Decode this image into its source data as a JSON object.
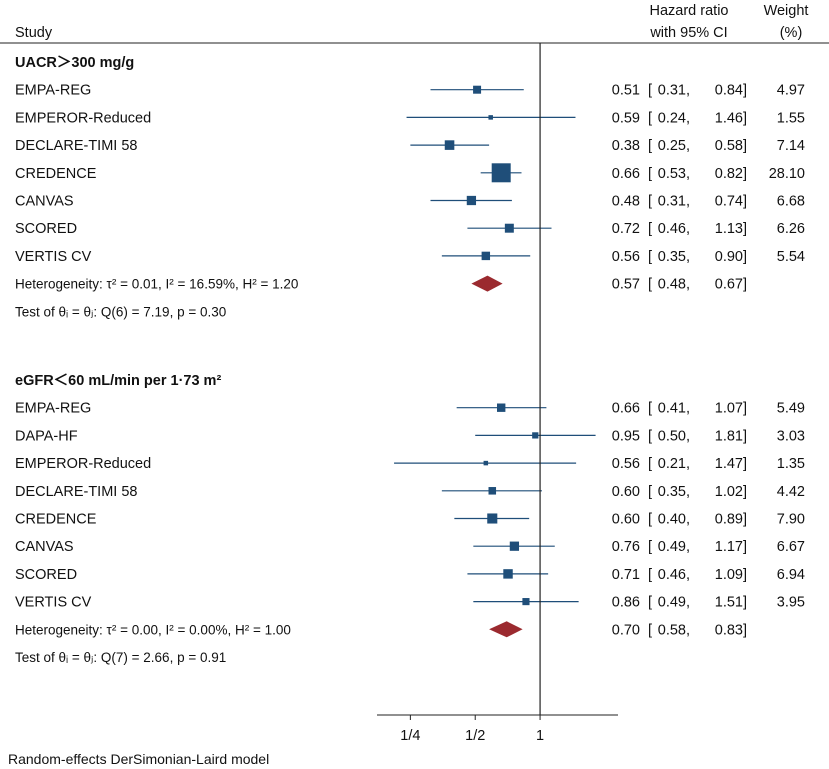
{
  "chart_data": {
    "type": "forest",
    "header": {
      "study": "Study",
      "hr_line1": "Hazard ratio",
      "hr_line2": "with 95% CI",
      "weight_line1": "Weight",
      "weight_line2": "(%)"
    },
    "x_axis": {
      "scale": "log",
      "ticks": [
        0.25,
        0.5,
        1
      ],
      "tick_labels": [
        "1/4",
        "1/2",
        "1"
      ],
      "range": [
        0.175,
        2.3
      ],
      "reference_line": 1
    },
    "groups": [
      {
        "title": "UACR＞300 mg/g",
        "studies": [
          {
            "name": "EMPA-REG",
            "hr": 0.51,
            "lo": 0.31,
            "hi": 0.84,
            "hr_text": "0.51",
            "lo_text": "0.31",
            "hi_text": "0.84",
            "weight": "4.97",
            "w": 4.97
          },
          {
            "name": "EMPEROR-Reduced",
            "hr": 0.59,
            "lo": 0.24,
            "hi": 1.46,
            "hr_text": "0.59",
            "lo_text": "0.24",
            "hi_text": "1.46",
            "weight": "1.55",
            "w": 1.55
          },
          {
            "name": "DECLARE-TIMI 58",
            "hr": 0.38,
            "lo": 0.25,
            "hi": 0.58,
            "hr_text": "0.38",
            "lo_text": "0.25",
            "hi_text": "0.58",
            "weight": "7.14",
            "w": 7.14
          },
          {
            "name": "CREDENCE",
            "hr": 0.66,
            "lo": 0.53,
            "hi": 0.82,
            "hr_text": "0.66",
            "lo_text": "0.53",
            "hi_text": "0.82",
            "weight": "28.10",
            "w": 28.1
          },
          {
            "name": "CANVAS",
            "hr": 0.48,
            "lo": 0.31,
            "hi": 0.74,
            "hr_text": "0.48",
            "lo_text": "0.31",
            "hi_text": "0.74",
            "weight": "6.68",
            "w": 6.68
          },
          {
            "name": "SCORED",
            "hr": 0.72,
            "lo": 0.46,
            "hi": 1.13,
            "hr_text": "0.72",
            "lo_text": "0.46",
            "hi_text": "1.13",
            "weight": "6.26",
            "w": 6.26
          },
          {
            "name": "VERTIS CV",
            "hr": 0.56,
            "lo": 0.35,
            "hi": 0.9,
            "hr_text": "0.56",
            "lo_text": "0.35",
            "hi_text": "0.90",
            "weight": "5.54",
            "w": 5.54
          }
        ],
        "pooled": {
          "label": "Heterogeneity: τ² = 0.01, I² = 16.59%, H² = 1.20",
          "hr": 0.57,
          "lo": 0.48,
          "hi": 0.67,
          "hr_text": "0.57",
          "lo_text": "0.48",
          "hi_text": "0.67"
        },
        "test": "Test of θᵢ = θⱼ: Q(6) = 7.19, p = 0.30"
      },
      {
        "title": "eGFR＜60 mL/min per 1·73 m²",
        "studies": [
          {
            "name": "EMPA-REG",
            "hr": 0.66,
            "lo": 0.41,
            "hi": 1.07,
            "hr_text": "0.66",
            "lo_text": "0.41",
            "hi_text": "1.07",
            "weight": "5.49",
            "w": 5.49
          },
          {
            "name": "DAPA-HF",
            "hr": 0.95,
            "lo": 0.5,
            "hi": 1.81,
            "hr_text": "0.95",
            "lo_text": "0.50",
            "hi_text": "1.81",
            "weight": "3.03",
            "w": 3.03
          },
          {
            "name": "EMPEROR-Reduced",
            "hr": 0.56,
            "lo": 0.21,
            "hi": 1.47,
            "hr_text": "0.56",
            "lo_text": "0.21",
            "hi_text": "1.47",
            "weight": "1.35",
            "w": 1.35
          },
          {
            "name": "DECLARE-TIMI 58",
            "hr": 0.6,
            "lo": 0.35,
            "hi": 1.02,
            "hr_text": "0.60",
            "lo_text": "0.35",
            "hi_text": "1.02",
            "weight": "4.42",
            "w": 4.42
          },
          {
            "name": "CREDENCE",
            "hr": 0.6,
            "lo": 0.4,
            "hi": 0.89,
            "hr_text": "0.60",
            "lo_text": "0.40",
            "hi_text": "0.89",
            "weight": "7.90",
            "w": 7.9
          },
          {
            "name": "CANVAS",
            "hr": 0.76,
            "lo": 0.49,
            "hi": 1.17,
            "hr_text": "0.76",
            "lo_text": "0.49",
            "hi_text": "1.17",
            "weight": "6.67",
            "w": 6.67
          },
          {
            "name": "SCORED",
            "hr": 0.71,
            "lo": 0.46,
            "hi": 1.09,
            "hr_text": "0.71",
            "lo_text": "0.46",
            "hi_text": "1.09",
            "weight": "6.94",
            "w": 6.94
          },
          {
            "name": "VERTIS CV",
            "hr": 0.86,
            "lo": 0.49,
            "hi": 1.51,
            "hr_text": "0.86",
            "lo_text": "0.49",
            "hi_text": "1.51",
            "weight": "3.95",
            "w": 3.95
          }
        ],
        "pooled": {
          "label": "Heterogeneity: τ² = 0.00, I² = 0.00%, H² = 1.00",
          "hr": 0.7,
          "lo": 0.58,
          "hi": 0.83,
          "hr_text": "0.70",
          "lo_text": "0.58",
          "hi_text": "0.83"
        },
        "test": "Test of θᵢ = θⱼ: Q(7) = 2.66, p = 0.91"
      }
    ],
    "footnote": "Random-effects DerSimonian-Laird model",
    "colors": {
      "marker": "#1f4e79",
      "ci_line": "#1f4e79",
      "diamond": "#9b2a2f",
      "axis": "#222222"
    }
  }
}
